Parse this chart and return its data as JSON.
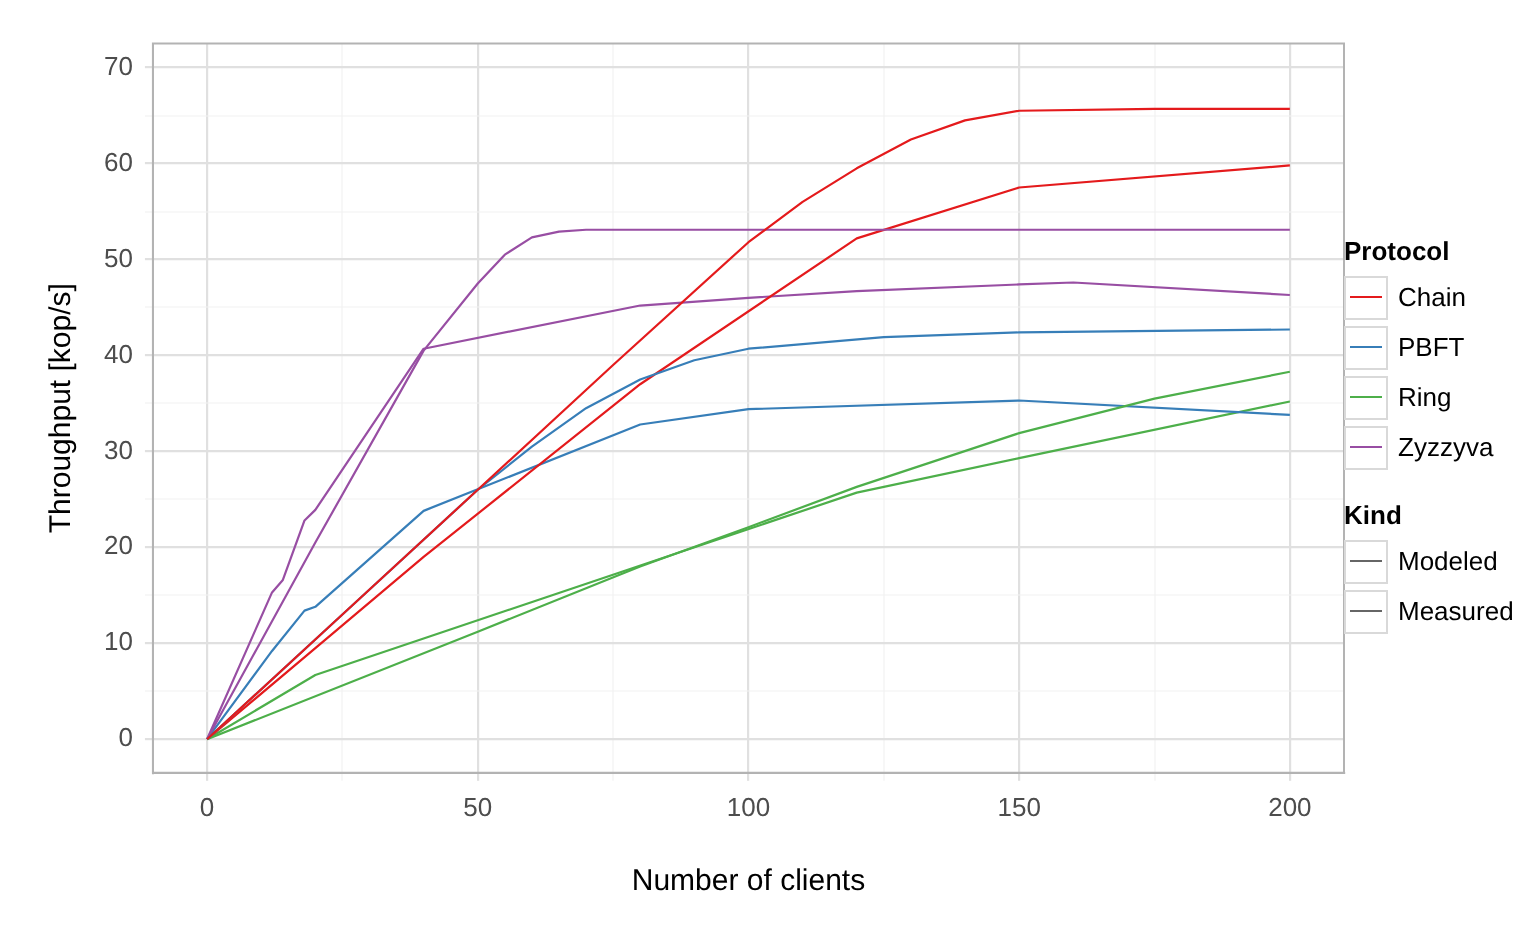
{
  "chart_data": {
    "type": "line",
    "xlabel": "Number of clients",
    "ylabel": "Throughput [kop/s]",
    "legend_title": "Protocol",
    "legend": "right",
    "grid": true,
    "marker": "none",
    "line_style": "solid",
    "xlim": [
      -10,
      210
    ],
    "xticks": [
      0,
      {
        "value": 25,
        "label": null
      },
      50,
      {
        "value": 75,
        "label": null
      },
      100,
      {
        "value": 125,
        "label": null
      },
      150,
      {
        "value": 175,
        "label": null
      },
      200
    ],
    "ylim": [
      -3.5,
      72.5
    ],
    "yticks": [
      0,
      {
        "value": 5,
        "label": null
      },
      10,
      {
        "value": 15,
        "label": null
      },
      20,
      {
        "value": 25,
        "label": null
      },
      30,
      {
        "value": 35,
        "label": null
      },
      40,
      {
        "value": 45,
        "label": null
      },
      50,
      {
        "value": 55,
        "label": null
      },
      60,
      {
        "value": 65,
        "label": null
      },
      70
    ],
    "annotations": [
      "Kind",
      "Modeled",
      "Measured"
    ],
    "series": [
      {
        "name": "Chain",
        "color": "#e41a1c",
        "x": [
          0,
          25,
          50,
          75,
          100,
          110,
          120,
          130,
          140,
          150,
          175,
          200
        ],
        "values": [
          0,
          13,
          26,
          39,
          51.8,
          56,
          59.5,
          62.5,
          64.5,
          65.5,
          65.7,
          65.7
        ]
      },
      {
        "name": "PBFT",
        "color": "#377eb8",
        "x": [
          0,
          25,
          50,
          60,
          70,
          80,
          90,
          100,
          125,
          150,
          200
        ],
        "values": [
          0,
          13,
          26,
          30.5,
          34.5,
          37.5,
          39.5,
          40.7,
          41.9,
          42.4,
          42.7
        ]
      },
      {
        "name": "Ring",
        "color": "#4daf4a",
        "x": [
          0,
          50,
          80,
          100,
          120,
          150,
          175,
          200
        ],
        "values": [
          0,
          11.2,
          18,
          22.1,
          26.3,
          31.9,
          35.5,
          38.3
        ]
      },
      {
        "name": "Zyzzyva",
        "color": "#984ea3",
        "x": [
          0,
          20,
          40,
          50,
          55,
          60,
          65,
          70,
          200
        ],
        "values": [
          0,
          20.5,
          40.5,
          47.5,
          50.5,
          52.3,
          52.9,
          53.1,
          53.1
        ]
      },
      {
        "color": "#e41a1c",
        "x": [
          0,
          20,
          40,
          80,
          120,
          150,
          200
        ],
        "values": [
          0,
          9.5,
          19,
          37,
          52.2,
          57.5,
          59.8
        ]
      },
      {
        "color": "#377eb8",
        "x": [
          0,
          12,
          18,
          20,
          40,
          80,
          100,
          150,
          200
        ],
        "values": [
          0,
          9.2,
          13.4,
          13.8,
          23.8,
          32.8,
          34.4,
          35.3,
          33.8
        ]
      },
      {
        "color": "#4daf4a",
        "x": [
          0,
          20,
          120,
          150,
          200
        ],
        "values": [
          0,
          6.7,
          25.7,
          29.3,
          35.2
        ]
      },
      {
        "color": "#984ea3",
        "x": [
          0,
          12,
          14,
          18,
          20,
          40,
          80,
          100,
          120,
          150,
          160,
          200
        ],
        "values": [
          0,
          15.3,
          16.6,
          22.8,
          23.9,
          40.7,
          45.2,
          46,
          46.7,
          47.4,
          47.6,
          46.3
        ]
      }
    ]
  }
}
